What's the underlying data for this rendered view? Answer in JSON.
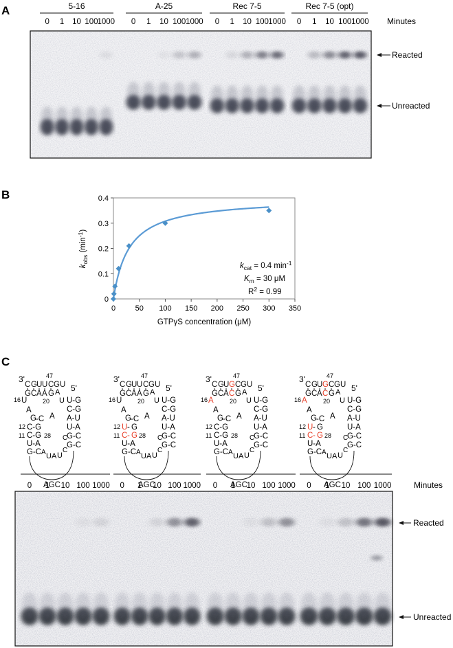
{
  "panel_a": {
    "label": "A",
    "groups": [
      "5-16",
      "A-25",
      "Rec 7-5",
      "Rec 7-5 (opt)"
    ],
    "times": [
      "0",
      "1",
      "10",
      "100",
      "1000"
    ],
    "minutes_label": "Minutes",
    "reacted_label": "Reacted",
    "unreacted_label": "Unreacted",
    "reacted_intensity": [
      [
        0,
        0,
        0,
        0,
        0.08
      ],
      [
        0,
        0,
        0.05,
        0.2,
        0.3
      ],
      [
        0,
        0.1,
        0.3,
        0.55,
        0.65
      ],
      [
        0,
        0.25,
        0.5,
        0.7,
        0.75
      ]
    ]
  },
  "panel_b": {
    "label": "B",
    "chart_data": {
      "type": "scatter",
      "x": [
        0,
        1,
        3,
        10,
        30,
        100,
        300
      ],
      "y": [
        0,
        0.02,
        0.05,
        0.12,
        0.21,
        0.3,
        0.35
      ],
      "fit": {
        "kcat": 0.4,
        "Km": 30
      },
      "xlabel": "GTPγS concentration (μM)",
      "ylabel_main": "k",
      "ylabel_sub": "obs",
      "ylabel_unit": " (min",
      "ylabel_exp": "-1",
      "ylabel_close": ")",
      "xlim": [
        0,
        350
      ],
      "ylim": [
        0,
        0.4
      ],
      "xticks": [
        "0",
        "50",
        "100",
        "150",
        "200",
        "250",
        "300",
        "350"
      ],
      "yticks": [
        "0",
        "0.1",
        "0.2",
        "0.3",
        "0.4"
      ],
      "annotations": {
        "kcat_k": "k",
        "kcat_sub": "cat",
        "kcat_val": " = 0.4 min",
        "kcat_exp": "-1",
        "km_k": "K",
        "km_sub": "m",
        "km_val": " = 30 μM",
        "r2_text": "R",
        "r2_exp": "2",
        "r2_val": " = 0.99"
      },
      "marker_color": "#4a90c8",
      "line_color": "#5b9bd5"
    }
  },
  "panel_c": {
    "label": "C",
    "structures": [
      {
        "three": "3'",
        "n47": "47",
        "top": "CGUUCGU",
        "row2": "GCAAG",
        "n20": "20",
        "n16": "16",
        "five": "5'",
        "mut_top": [],
        "mut_row2": [],
        "mut16": false,
        "mut12": false
      },
      {
        "three": "3'",
        "n47": "47",
        "top": "CGUUCGU",
        "row2": "GCAAG",
        "n20": "20",
        "n16": "16",
        "five": "5'",
        "mut_top": [],
        "mut_row2": [],
        "mut16": false,
        "mut12": true
      },
      {
        "three": "3'",
        "n47": "47",
        "top": "CGUGCGU",
        "row2": "GCACG",
        "n20": "20",
        "n16": "16",
        "five": "5'",
        "mut_top": [
          3
        ],
        "mut_row2": [
          3
        ],
        "mut16": true,
        "mut12": false
      },
      {
        "three": "3'",
        "n47": "47",
        "top": "CGUGCGU",
        "row2": "GCACG",
        "n20": "20",
        "n16": "16",
        "five": "5'",
        "mut_top": [
          3
        ],
        "mut_row2": [
          3
        ],
        "mut16": true,
        "mut12": true
      }
    ],
    "stem": {
      "u16": "U",
      "a16": "A",
      "a_loop": "A",
      "u_loop": "U",
      "a_r": "A",
      "gc_gc": "G-C",
      "c_g": "C-G",
      "g_c": "G-C",
      "u_a": "U-A",
      "u_g": "U-G",
      "a_u": "A-U",
      "n12": "12",
      "n11": "11",
      "n28": "28",
      "agc": "AGC",
      "a_ua": "A",
      "u_ua": "U",
      "a2_ua": "A",
      "u2_ua": "U",
      "c_ua": "C",
      "c2_ua": "C",
      "c_top": "C",
      "g_top": "G",
      "mut_u12": "U",
      "mut_c12": "C",
      "mut_g12": "G",
      "mut_a16": "A"
    },
    "times": [
      "0",
      "1",
      "10",
      "100",
      "1000"
    ],
    "minutes_label": "Minutes",
    "reacted_label": "Reacted",
    "unreacted_label": "Unreacted",
    "reacted_intensity": [
      [
        0,
        0,
        0,
        0.05,
        0.1
      ],
      [
        0,
        0,
        0.1,
        0.45,
        0.7
      ],
      [
        0,
        0,
        0.05,
        0.2,
        0.45
      ],
      [
        0,
        0.05,
        0.2,
        0.6,
        0.75
      ]
    ],
    "mutation_color": "#e8402a"
  }
}
